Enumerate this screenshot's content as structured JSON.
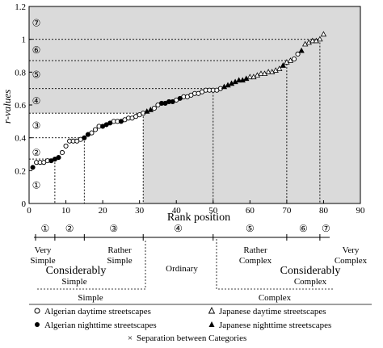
{
  "chart_data": {
    "type": "scatter",
    "xlabel": "Rank position",
    "ylabel": "r-values",
    "xlim": [
      0,
      90
    ],
    "ylim": [
      0,
      1.2
    ],
    "x_ticks": [
      "0",
      "10",
      "20",
      "30",
      "40",
      "50",
      "60",
      "70",
      "80",
      "90"
    ],
    "y_ticks": [
      "0",
      "0.2",
      "0.4",
      "0.6",
      "0.8",
      "1",
      "1.2"
    ],
    "category_levels": [
      {
        "label": "①",
        "y_top": 0.22
      },
      {
        "label": "②",
        "y_top": 0.4
      },
      {
        "label": "③",
        "y_top": 0.55
      },
      {
        "label": "④",
        "y_top": 0.7
      },
      {
        "label": "⑤",
        "y_top": 0.87
      },
      {
        "label": "⑥",
        "y_top": 1.0
      },
      {
        "label": "⑦",
        "y_top": 1.2
      }
    ],
    "separations": [
      {
        "x": 7,
        "y": 0.27
      },
      {
        "x": 15,
        "y": 0.4
      },
      {
        "x": 31,
        "y": 0.55
      },
      {
        "x": 50,
        "y": 0.7
      },
      {
        "x": 70,
        "y": 0.87
      },
      {
        "x": 79,
        "y": 1.0
      }
    ],
    "shading": [
      {
        "x_from": 0,
        "y_from": 0.7,
        "color": "#a3a3a3"
      },
      {
        "x_from": 50,
        "y_from": 0,
        "color": "#a3a3a3"
      },
      {
        "x_from": 31,
        "y_from": 0,
        "color": "#dadada"
      },
      {
        "x_from": 0,
        "y_from": 0.55,
        "color": "#dadada"
      }
    ],
    "series": [
      {
        "name": "Algerian daytime streetscapes",
        "marker": "open-circle",
        "points": [
          [
            2,
            0.25
          ],
          [
            3,
            0.25
          ],
          [
            4,
            0.25
          ],
          [
            5,
            0.26
          ],
          [
            9,
            0.31
          ],
          [
            10,
            0.35
          ],
          [
            11,
            0.38
          ],
          [
            12,
            0.38
          ],
          [
            13,
            0.38
          ],
          [
            14,
            0.39
          ],
          [
            17,
            0.43
          ],
          [
            18,
            0.45
          ],
          [
            19,
            0.47
          ],
          [
            23,
            0.5
          ],
          [
            24,
            0.5
          ],
          [
            26,
            0.51
          ],
          [
            27,
            0.52
          ],
          [
            28,
            0.52
          ],
          [
            29,
            0.53
          ],
          [
            30,
            0.54
          ],
          [
            31,
            0.55
          ],
          [
            34,
            0.58
          ],
          [
            35,
            0.6
          ],
          [
            40,
            0.63
          ],
          [
            42,
            0.65
          ],
          [
            43,
            0.65
          ],
          [
            44,
            0.66
          ],
          [
            45,
            0.67
          ],
          [
            46,
            0.67
          ],
          [
            47,
            0.68
          ],
          [
            48,
            0.69
          ],
          [
            49,
            0.69
          ],
          [
            50,
            0.69
          ],
          [
            51,
            0.69
          ],
          [
            52,
            0.7
          ],
          [
            72,
            0.88
          ],
          [
            73,
            0.91
          ]
        ]
      },
      {
        "name": "Algerian nighttime streetscapes",
        "marker": "filled-circle",
        "points": [
          [
            1,
            0.22
          ],
          [
            6,
            0.26
          ],
          [
            7,
            0.27
          ],
          [
            8,
            0.28
          ],
          [
            15,
            0.4
          ],
          [
            16,
            0.42
          ],
          [
            20,
            0.47
          ],
          [
            21,
            0.48
          ],
          [
            22,
            0.49
          ],
          [
            25,
            0.5
          ],
          [
            36,
            0.61
          ],
          [
            37,
            0.61
          ],
          [
            38,
            0.62
          ],
          [
            39,
            0.62
          ],
          [
            41,
            0.64
          ]
        ]
      },
      {
        "name": "Japanese daytime streetscapes",
        "marker": "open-triangle",
        "points": [
          [
            60,
            0.77
          ],
          [
            61,
            0.77
          ],
          [
            62,
            0.78
          ],
          [
            63,
            0.79
          ],
          [
            64,
            0.79
          ],
          [
            65,
            0.8
          ],
          [
            66,
            0.8
          ],
          [
            67,
            0.81
          ],
          [
            68,
            0.82
          ],
          [
            70,
            0.86
          ],
          [
            71,
            0.87
          ],
          [
            75,
            0.97
          ],
          [
            76,
            0.98
          ],
          [
            77,
            0.99
          ],
          [
            78,
            0.99
          ],
          [
            79,
            1.0
          ],
          [
            80,
            1.03
          ]
        ]
      },
      {
        "name": "Japanese nighttime streetscapes",
        "marker": "filled-triangle",
        "points": [
          [
            32,
            0.56
          ],
          [
            33,
            0.57
          ],
          [
            53,
            0.71
          ],
          [
            54,
            0.72
          ],
          [
            55,
            0.73
          ],
          [
            56,
            0.74
          ],
          [
            57,
            0.75
          ],
          [
            58,
            0.75
          ],
          [
            59,
            0.76
          ],
          [
            69,
            0.84
          ],
          [
            74,
            0.93
          ]
        ]
      }
    ]
  },
  "scale": {
    "category_numbers": [
      "①",
      "②",
      "③",
      "④",
      "⑤",
      "⑥",
      "⑦"
    ],
    "labels": {
      "very_simple": [
        "Very",
        "Simple"
      ],
      "considerably_simple": [
        "Considerably",
        "Simple"
      ],
      "rather_simple": [
        "Rather",
        "Simple"
      ],
      "ordinary": "Ordinary",
      "rather_complex": [
        "Rather",
        "Complex"
      ],
      "considerably_complex": [
        "Considerably",
        "Complex"
      ],
      "very_complex": [
        "Very",
        "Complex"
      ],
      "simple_group": "Simple",
      "complex_group": "Complex"
    }
  },
  "legend": {
    "algerian_day": "Algerian daytime streetscapes",
    "algerian_night": "Algerian nighttime streetscapes",
    "japanese_day": "Japanese daytime streetscapes",
    "japanese_night": "Japanese nighttime streetscapes",
    "separation": "Separation between Categories"
  }
}
